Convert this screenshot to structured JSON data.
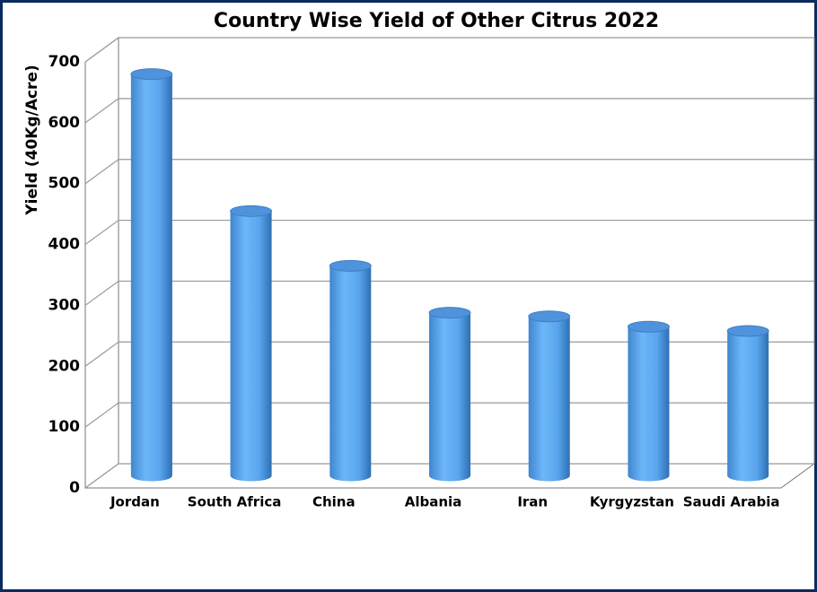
{
  "chart_data": {
    "type": "bar",
    "title": "Country Wise Yield of Other Citrus 2022",
    "y_label": "Yield (40Kg/Acre)",
    "categories": [
      "Jordan",
      "South Africa",
      "China",
      "Albania",
      "Iran",
      "Kyrgyzstan",
      "Saudi Arabia"
    ],
    "values": [
      660,
      435,
      345,
      268,
      262,
      245,
      238
    ],
    "color": "#5aa6ee",
    "ylim": [
      0,
      700
    ],
    "yticks": [
      0,
      100,
      200,
      300,
      400,
      500,
      600,
      700
    ],
    "grid": true
  }
}
